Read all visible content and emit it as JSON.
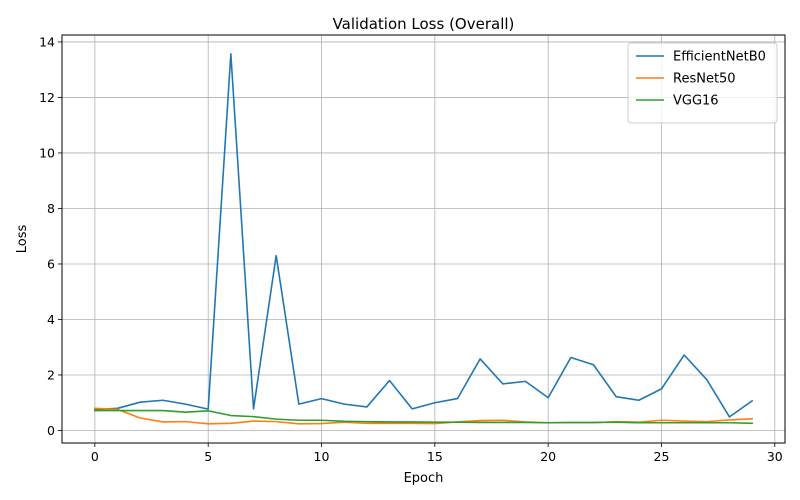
{
  "chart_data": {
    "type": "line",
    "title": "Validation Loss (Overall)",
    "xlabel": "Epoch",
    "ylabel": "Loss",
    "xlim": [
      -1.45,
      30.45
    ],
    "ylim": [
      -0.45,
      14.25
    ],
    "xticks": [
      0,
      5,
      10,
      15,
      20,
      25,
      30
    ],
    "yticks": [
      0,
      2,
      4,
      6,
      8,
      10,
      12,
      14
    ],
    "grid": true,
    "legend_position": "top-right",
    "x": [
      0,
      1,
      2,
      3,
      4,
      5,
      6,
      7,
      8,
      9,
      10,
      11,
      12,
      13,
      14,
      15,
      16,
      17,
      18,
      19,
      20,
      21,
      22,
      23,
      24,
      25,
      26,
      27,
      28,
      29
    ],
    "series": [
      {
        "name": "EfficientNetB0",
        "color": "#1f77b4",
        "values": [
          0.75,
          0.8,
          1.02,
          1.09,
          0.95,
          0.77,
          13.57,
          0.78,
          6.3,
          0.95,
          1.15,
          0.95,
          0.85,
          1.8,
          0.78,
          1.0,
          1.15,
          2.58,
          1.68,
          1.77,
          1.18,
          2.63,
          2.37,
          1.22,
          1.09,
          1.5,
          2.72,
          1.83,
          0.49,
          1.07
        ]
      },
      {
        "name": "ResNet50",
        "color": "#ff7f0e",
        "values": [
          0.8,
          0.76,
          0.45,
          0.31,
          0.32,
          0.24,
          0.26,
          0.34,
          0.32,
          0.24,
          0.25,
          0.3,
          0.26,
          0.26,
          0.26,
          0.25,
          0.31,
          0.36,
          0.37,
          0.31,
          0.28,
          0.28,
          0.28,
          0.32,
          0.3,
          0.37,
          0.34,
          0.32,
          0.38,
          0.42
        ]
      },
      {
        "name": "VGG16",
        "color": "#2ca02c",
        "values": [
          0.72,
          0.72,
          0.72,
          0.72,
          0.66,
          0.71,
          0.54,
          0.5,
          0.41,
          0.37,
          0.37,
          0.33,
          0.32,
          0.31,
          0.31,
          0.3,
          0.3,
          0.29,
          0.29,
          0.29,
          0.28,
          0.29,
          0.29,
          0.3,
          0.28,
          0.28,
          0.28,
          0.28,
          0.28,
          0.26
        ]
      }
    ]
  }
}
